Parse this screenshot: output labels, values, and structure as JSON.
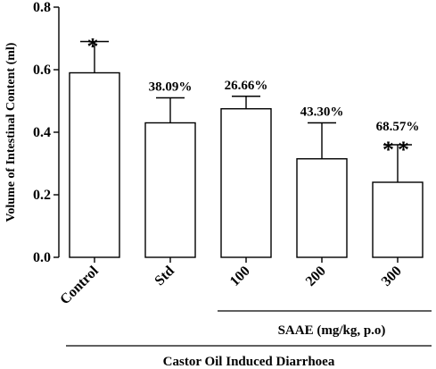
{
  "chart_data": {
    "type": "bar",
    "ylabel": "Volume of Intestinal Content (ml)",
    "ylim": [
      0,
      0.8
    ],
    "yticks": [
      "0.0",
      "0.2",
      "0.4",
      "0.6",
      "0.8"
    ],
    "categories": [
      "Control",
      "Std",
      "100",
      "200",
      "300"
    ],
    "values": [
      0.59,
      0.43,
      0.475,
      0.315,
      0.24
    ],
    "errors": [
      0.1,
      0.08,
      0.04,
      0.115,
      0.12
    ],
    "percent_labels": [
      "",
      "38.09%",
      "26.66%",
      "43.30%",
      "68.57%"
    ],
    "significance": [
      "*",
      "",
      "",
      "",
      "**"
    ],
    "group_labels": {
      "saae": "SAAE (mg/kg, p.o)",
      "overall": "Castor Oil Induced Diarrhoea"
    },
    "bar_fill": "#ffffff",
    "bar_stroke": "#000000"
  }
}
